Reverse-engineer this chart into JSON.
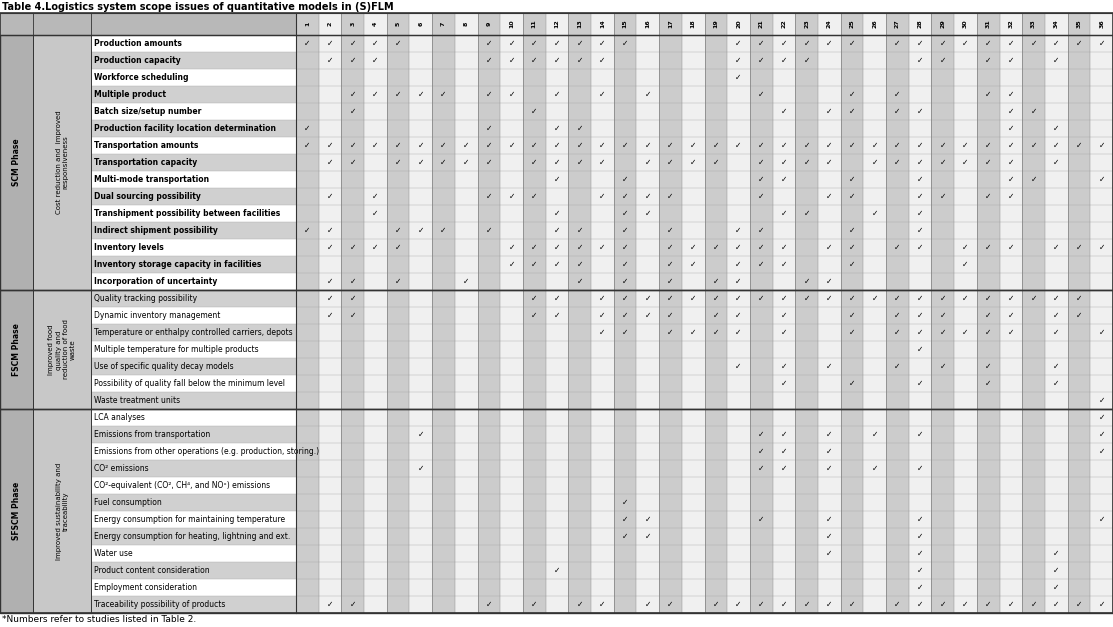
{
  "title": "Table 4.Logistics system scope issues of quantitative models in (S)FLM",
  "footnote": "*Numbers refer to studies listed in Table 2.",
  "col_headers": [
    "1",
    "2",
    "3",
    "4",
    "5",
    "6",
    "7",
    "8",
    "9",
    "10",
    "11",
    "12",
    "13",
    "14",
    "15",
    "16",
    "17",
    "18",
    "19",
    "20",
    "21",
    "22",
    "23",
    "24",
    "25",
    "26",
    "27",
    "28",
    "29",
    "30",
    "31",
    "32",
    "33",
    "34",
    "35",
    "36"
  ],
  "rows": [
    "Production amounts",
    "Production capacity",
    "Workforce scheduling",
    "Multiple product",
    "Batch size/setup number",
    "Production facility location determination",
    "Transportation amounts",
    "Transportation capacity",
    "Multi-mode transportation",
    "Dual sourcing possibility",
    "Transhipment possibility between facilities",
    "Indirect shipment possibility",
    "Inventory levels",
    "Inventory storage capacity in facilities",
    "Incorporation of uncertainty",
    "Quality tracking possibility",
    "Dynamic inventory management",
    "Temperature or enthalpy controlled carriers, depots",
    "Multiple temperature for multiple products",
    "Use of specific quality decay models",
    "Possibility of quality fall below the minimum level",
    "Waste treatment units",
    "LCA analyses",
    "Emissions from transportation",
    "Emissions from other operations (e.g. production, storing.)",
    "CO² emissions",
    "CO²-equivalent (CO², CH⁴, and NOˣ) emissions",
    "Fuel consumption",
    "Energy consumption for maintaining temperature",
    "Energy consumption for heating, lightning and ext.",
    "Water use",
    "Product content consideration",
    "Employment consideration",
    "Traceability possibility of products"
  ],
  "phases": [
    {
      "label": "SCM Phase",
      "start": 0,
      "end": 15
    },
    {
      "label": "FSCM Phase",
      "start": 15,
      "end": 22
    },
    {
      "label": "SFSCM Phase",
      "start": 22,
      "end": 34
    }
  ],
  "subphases": [
    {
      "label": "Cost reduction and  improved\nresponsiveness",
      "start": 0,
      "end": 15
    },
    {
      "label": "Improved food\nquality and \nreduction of food\nwaste",
      "start": 15,
      "end": 22
    },
    {
      "label": "Improved sustainability and\ntraceability",
      "start": 22,
      "end": 34
    }
  ],
  "checkmarks": {
    "Production amounts": [
      1,
      2,
      3,
      4,
      5,
      9,
      10,
      11,
      12,
      13,
      14,
      15,
      20,
      21,
      22,
      23,
      24,
      25,
      27,
      28,
      29,
      30,
      31,
      32,
      33,
      34,
      35,
      36
    ],
    "Production capacity": [
      2,
      3,
      4,
      9,
      10,
      11,
      12,
      13,
      14,
      20,
      21,
      22,
      23,
      28,
      29,
      31,
      32,
      34
    ],
    "Workforce scheduling": [
      20
    ],
    "Multiple product": [
      3,
      4,
      5,
      6,
      7,
      9,
      10,
      12,
      14,
      16,
      21,
      25,
      27,
      31,
      32
    ],
    "Batch size/setup number": [
      3,
      11,
      22,
      24,
      25,
      27,
      28,
      32,
      33
    ],
    "Production facility location determination": [
      1,
      9,
      12,
      13,
      32,
      34
    ],
    "Transportation amounts": [
      1,
      2,
      3,
      4,
      5,
      6,
      7,
      8,
      9,
      10,
      11,
      12,
      13,
      14,
      15,
      16,
      17,
      18,
      19,
      20,
      21,
      22,
      23,
      24,
      25,
      26,
      27,
      28,
      29,
      30,
      31,
      32,
      33,
      34,
      35,
      36
    ],
    "Transportation capacity": [
      2,
      3,
      5,
      6,
      7,
      8,
      9,
      11,
      12,
      13,
      14,
      16,
      17,
      18,
      19,
      21,
      22,
      23,
      24,
      26,
      27,
      28,
      29,
      30,
      31,
      32,
      34
    ],
    "Multi-mode transportation": [
      12,
      15,
      21,
      22,
      25,
      28,
      32,
      33,
      36
    ],
    "Dual sourcing possibility": [
      2,
      4,
      9,
      10,
      11,
      14,
      15,
      16,
      17,
      21,
      24,
      25,
      28,
      29,
      31,
      32
    ],
    "Transhipment possibility between facilities": [
      4,
      12,
      15,
      16,
      22,
      23,
      26,
      28
    ],
    "Indirect shipment possibility": [
      1,
      2,
      5,
      6,
      7,
      9,
      12,
      13,
      15,
      17,
      20,
      21,
      25,
      28
    ],
    "Inventory levels": [
      2,
      3,
      4,
      5,
      10,
      11,
      12,
      13,
      14,
      15,
      17,
      18,
      19,
      20,
      21,
      22,
      24,
      25,
      27,
      28,
      30,
      31,
      32,
      34,
      35,
      36
    ],
    "Inventory storage capacity in facilities": [
      10,
      11,
      12,
      13,
      15,
      17,
      18,
      20,
      21,
      22,
      25,
      30
    ],
    "Incorporation of uncertainty": [
      2,
      3,
      5,
      8,
      13,
      15,
      17,
      19,
      20,
      23,
      24
    ],
    "Quality tracking possibility": [
      2,
      3,
      11,
      12,
      14,
      15,
      16,
      17,
      18,
      19,
      20,
      21,
      22,
      23,
      24,
      25,
      26,
      27,
      28,
      29,
      30,
      31,
      32,
      33,
      34,
      35
    ],
    "Dynamic inventory management": [
      2,
      3,
      11,
      12,
      14,
      15,
      16,
      17,
      19,
      20,
      22,
      25,
      27,
      28,
      29,
      31,
      32,
      34,
      35
    ],
    "Temperature or enthalpy controlled carriers, depots": [
      14,
      15,
      17,
      18,
      19,
      20,
      22,
      25,
      27,
      28,
      29,
      30,
      31,
      32,
      34,
      36
    ],
    "Multiple temperature for multiple products": [
      28
    ],
    "Use of specific quality decay models": [
      20,
      22,
      24,
      27,
      29,
      31,
      34
    ],
    "Possibility of quality fall below the minimum level": [
      22,
      25,
      28,
      31,
      34
    ],
    "Waste treatment units": [
      36
    ],
    "LCA analyses": [
      36
    ],
    "Emissions from transportation": [
      6,
      21,
      22,
      24,
      26,
      28,
      36
    ],
    "Emissions from other operations (e.g. production, storing.)": [
      21,
      22,
      24,
      36
    ],
    "CO² emissions": [
      6,
      21,
      22,
      24,
      26,
      28
    ],
    "CO²-equivalent (CO², CH⁴, and NOₓ) emissions": [
      36
    ],
    "Fuel consumption": [
      15
    ],
    "Energy consumption for maintaining temperature": [
      15,
      16,
      21,
      24,
      28,
      36
    ],
    "Energy consumption for heating, lightning and ext.": [
      15,
      16,
      24,
      28
    ],
    "Water use": [
      24,
      28,
      34
    ],
    "Product content consideration": [
      12,
      28,
      34
    ],
    "Employment consideration": [
      28,
      34
    ],
    "Traceability possibility of products": [
      2,
      3,
      9,
      11,
      13,
      14,
      16,
      17,
      19,
      20,
      21,
      22,
      23,
      24,
      25,
      27,
      28,
      29,
      30,
      31,
      32,
      33,
      34,
      35,
      36
    ]
  },
  "col_gray": "#cccccc",
  "col_white": "#f0f0f0",
  "row_gray": "#d0d0d0",
  "row_white": "#ffffff",
  "phase_col_color": "#b0b0b0",
  "subphase_col_color": "#c8c8c8",
  "header_col_color": "#b8b8b8",
  "border_color": "#555555",
  "thick_border": "#333333"
}
